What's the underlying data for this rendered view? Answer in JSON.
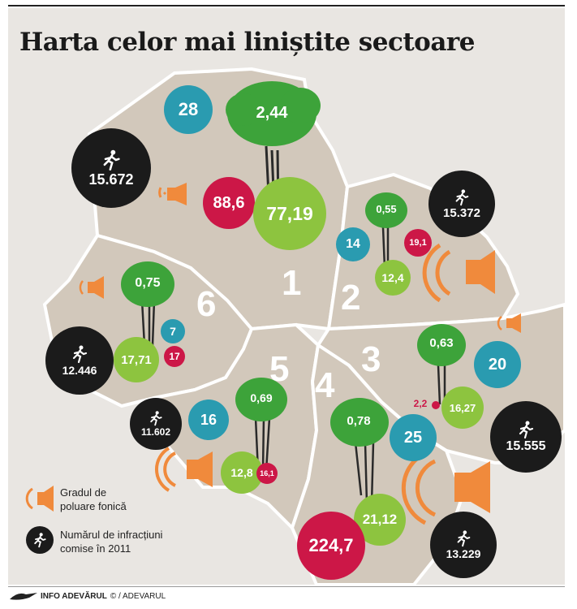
{
  "title": "Harta celor mai liniștite sectoare",
  "sectors": [
    {
      "id": "1",
      "trees": "2,44",
      "teal": "28",
      "red": "88,6",
      "green": "77,19",
      "crimes": "15.672"
    },
    {
      "id": "2",
      "trees": "0,55",
      "teal": "14",
      "red": "19,1",
      "green": "12,4",
      "crimes": "15.372"
    },
    {
      "id": "3",
      "trees": "0,63",
      "teal": "20",
      "red": "2,2",
      "green": "16,27",
      "crimes": "15.555"
    },
    {
      "id": "4",
      "trees": "0,78",
      "teal": "25",
      "red": "224,7",
      "green": "21,12",
      "crimes": "13.229"
    },
    {
      "id": "5",
      "trees": "0,69",
      "teal": "16",
      "red": "16,1",
      "green": "12,8",
      "crimes": "11.602"
    },
    {
      "id": "6",
      "trees": "0,75",
      "teal": "7",
      "red": "17",
      "green": "17,71",
      "crimes": "12.446"
    }
  ],
  "legend": {
    "noise_line1": "Gradul de",
    "noise_line2": "poluare fonică",
    "crime_line1": "Numărul de infracțiuni",
    "crime_line2": "comise în 2011"
  },
  "footer": {
    "brand": "INFO ADEVĂRUL",
    "credit": "© / ADEVARUL"
  },
  "colors": {
    "teal": "#2a9bb0",
    "red": "#cc1747",
    "green": "#8dc43f",
    "dark": "#1b1b1b",
    "orange": "#f08a3c",
    "tree_green": "#3da33a"
  }
}
